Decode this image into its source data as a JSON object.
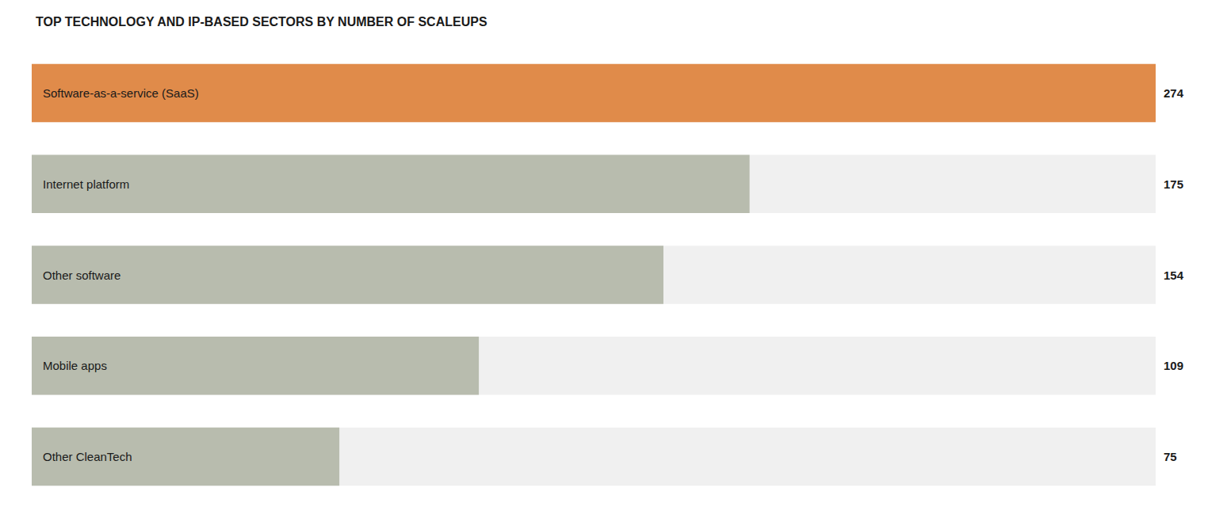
{
  "chart_data": {
    "type": "bar",
    "orientation": "horizontal",
    "title": "TOP TECHNOLOGY AND IP-BASED SECTORS BY NUMBER OF SCALEUPS",
    "categories": [
      "Software-as-a-service (SaaS)",
      "Internet platform",
      "Other software",
      "Mobile apps",
      "Other CleanTech"
    ],
    "values": [
      274,
      175,
      154,
      109,
      75
    ],
    "colors": [
      "#E08B4A",
      "#B8BCAE",
      "#B8BCAE",
      "#B8BCAE",
      "#B8BCAE"
    ],
    "xlim": [
      0,
      274
    ],
    "data_labels": true,
    "tick_labels": "y",
    "grid": false
  }
}
